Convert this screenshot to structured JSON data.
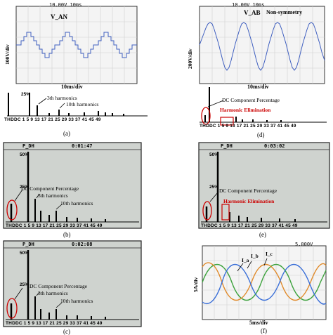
{
  "panel_a": {
    "status": "10.00V  10ms",
    "signal_label": "V_AN",
    "ylabel": "100V/div",
    "xlabel": "10ms/div",
    "pct_label": "25%",
    "annot_3": "3th harmonics",
    "annot_10": "10th harmonics",
    "ticks": "THDDC  1  5  9  13  17  21  25  29  33  37  41  45  49",
    "caption": "(a)"
  },
  "panel_b": {
    "p_label": "P_DH",
    "time": "0:01:47",
    "pct_top": "50%",
    "pct_mid": "25%",
    "annot_dc": "DC Component Percentage",
    "annot_3": "3th harmonics",
    "annot_10": "10th harmonics",
    "ticks": "THDDC  1  5  9  13  17  21  25  29  33  37  41  45  49",
    "caption": "(b)"
  },
  "panel_c": {
    "p_label": "P_DH",
    "time": "0:02:08",
    "pct_top": "50%",
    "pct_mid": "25%",
    "annot_dc": "DC Component Percentage",
    "annot_3": "3th harmonics",
    "annot_10": "10th harmonics",
    "ticks": "THDDC  1  5  9  13  17  21  25  29  33  37  41  45  49",
    "caption": "(c)"
  },
  "panel_d": {
    "status": "10.00V  10ms",
    "signal_label": "V_AB",
    "annot_ns": "Non-symmetry",
    "ylabel": "200V/div",
    "xlabel": "10ms/div",
    "annot_dc": "DC Component Percentage",
    "annot_he": "Harmonic Elimination",
    "ticks": "THDDC  1  5  9  13  17  21  25  29  33  37  41  45  49",
    "caption": "(d)"
  },
  "panel_e": {
    "p_label": "P_DH",
    "time": "0:03:02",
    "pct_top": "50%",
    "pct_mid": "25%",
    "annot_dc": "DC Component Percentage",
    "annot_he": "Harmonic Elimination",
    "ticks": "THDDC  1  5  9  13  17  21  25  29  33  37  41  45  49",
    "caption": "(e)"
  },
  "panel_f": {
    "status": "5.000V",
    "ylabel": "5A/div",
    "xlabel": "5ms/div",
    "phase_a": "I_a",
    "phase_b": "I_b",
    "phase_c": "I_c",
    "caption": "(f)"
  },
  "colors": {
    "lcd_bg": "#cfd3cf",
    "scope_bg": "#f4f4f4",
    "trace_blue": "#4060c0",
    "annot_red": "#cc0000",
    "phase_green": "#3da23d",
    "phase_orange": "#e08a2a",
    "phase_blue": "#3a6fd8"
  }
}
